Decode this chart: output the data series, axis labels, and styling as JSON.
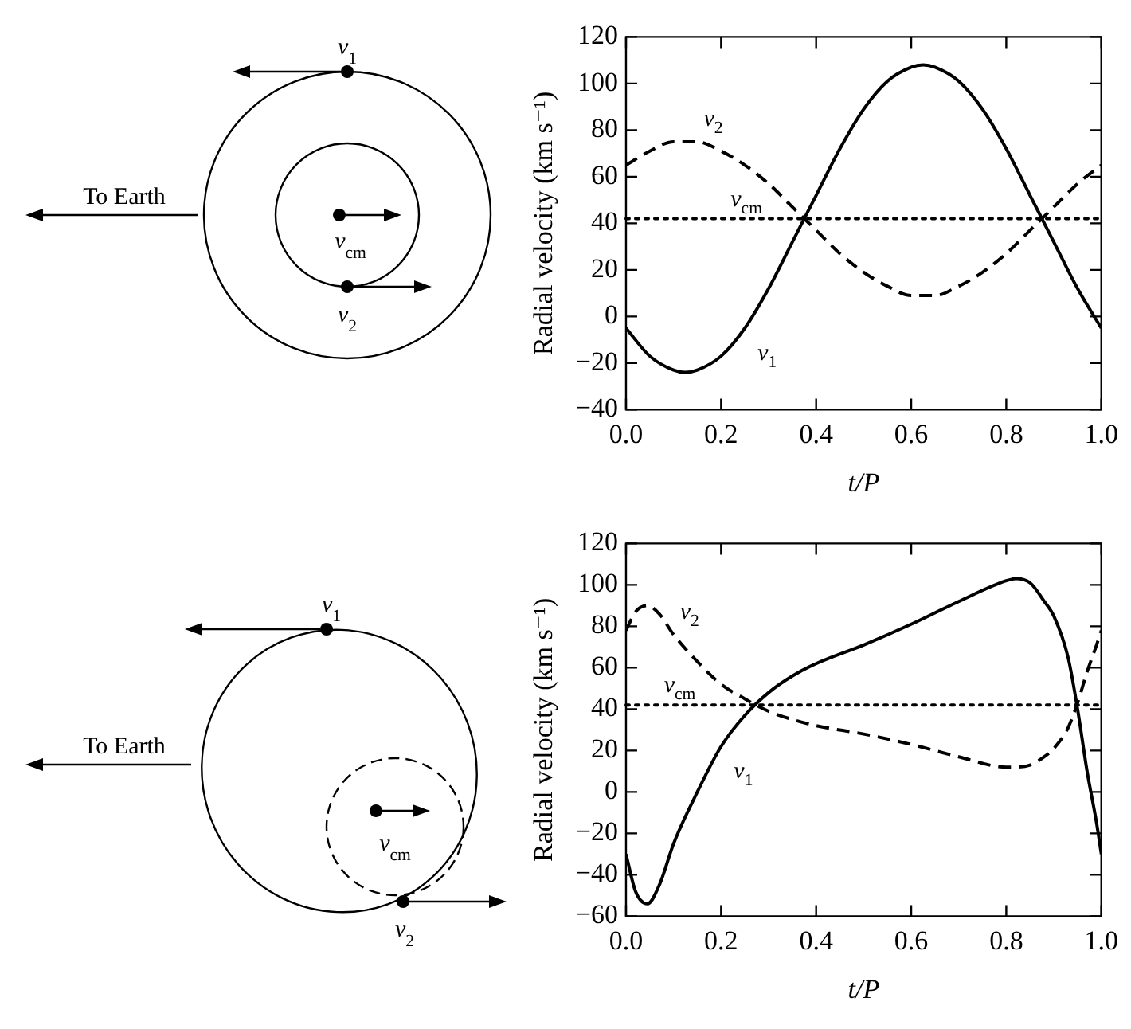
{
  "chart_data": [
    {
      "type": "line",
      "xlabel": "t/P",
      "ylabel": "Radial velocity (km s⁻¹)",
      "xlim": [
        0,
        1
      ],
      "ylim": [
        -40,
        120
      ],
      "xticks": [
        {
          "value": 0,
          "label": "0.0"
        },
        {
          "value": 0.2,
          "label": "0.2"
        },
        {
          "value": 0.4,
          "label": "0.4"
        },
        {
          "value": 0.6,
          "label": "0.6"
        },
        {
          "value": 0.8,
          "label": "0.8"
        },
        {
          "value": 1,
          "label": "1.0"
        }
      ],
      "yticks": [
        -40,
        -20,
        0,
        20,
        40,
        60,
        80,
        100,
        120
      ],
      "x": [
        0,
        0.05,
        0.1,
        0.125,
        0.15,
        0.2,
        0.25,
        0.3,
        0.35,
        0.4,
        0.45,
        0.5,
        0.55,
        0.6,
        0.625,
        0.65,
        0.7,
        0.75,
        0.8,
        0.85,
        0.9,
        0.95,
        1
      ],
      "series": [
        {
          "name": "v$_{1}$",
          "color": "#000000",
          "line_style": "solid",
          "values": [
            -5,
            -17,
            -23,
            -24,
            -23,
            -17,
            -5,
            12,
            32,
            52,
            72,
            89,
            101,
            107,
            108,
            107,
            101,
            89,
            72,
            52,
            32,
            12,
            -5
          ]
        },
        {
          "name": "v$_{2}$",
          "color": "#000000",
          "line_style": "dashed",
          "values": [
            65,
            71,
            75,
            75,
            75,
            71,
            65,
            57,
            47,
            37,
            27,
            19,
            13,
            9,
            9,
            9,
            13,
            19,
            27,
            37,
            47,
            57,
            65
          ]
        }
      ],
      "ref_lines": [
        {
          "axis": "y",
          "value": 42,
          "label": "v$_{cm}$",
          "line_style": "dotted",
          "color": "#000000"
        }
      ],
      "marker": "none",
      "legend": false,
      "grid": false,
      "annotations": [
        "To Earth",
        "v$_{1}$",
        "v$_{2}$",
        "v$_{cm}$"
      ]
    },
    {
      "type": "line",
      "xlabel": "t/P",
      "ylabel": "Radial velocity (km s⁻¹)",
      "xlim": [
        0,
        1
      ],
      "ylim": [
        -60,
        120
      ],
      "xticks": [
        {
          "value": 0,
          "label": "0.0"
        },
        {
          "value": 0.2,
          "label": "0.2"
        },
        {
          "value": 0.4,
          "label": "0.4"
        },
        {
          "value": 0.6,
          "label": "0.6"
        },
        {
          "value": 0.8,
          "label": "0.8"
        },
        {
          "value": 1,
          "label": "1.0"
        }
      ],
      "yticks": [
        -60,
        -40,
        -20,
        0,
        20,
        40,
        60,
        80,
        100,
        120
      ],
      "x": [
        0,
        0.02,
        0.045,
        0.07,
        0.1,
        0.15,
        0.2,
        0.25,
        0.3,
        0.35,
        0.4,
        0.5,
        0.6,
        0.7,
        0.8,
        0.82,
        0.85,
        0.88,
        0.9,
        0.93,
        0.95,
        0.97,
        0.99,
        1
      ],
      "series": [
        {
          "name": "v$_{1}$",
          "color": "#000000",
          "line_style": "solid",
          "values": [
            -30,
            -48,
            -54,
            -45,
            -25,
            0,
            22,
            37,
            48,
            56,
            62,
            71,
            81,
            92,
            102,
            103,
            101,
            92,
            85,
            65,
            40,
            10,
            -15,
            -30
          ]
        },
        {
          "name": "v$_{2}$",
          "color": "#000000",
          "line_style": "dashed",
          "values": [
            78,
            87,
            90,
            86,
            76,
            63,
            52,
            45,
            39,
            35,
            32,
            28,
            23,
            17,
            12,
            12,
            13,
            17,
            21,
            31,
            43,
            58,
            71,
            78
          ]
        }
      ],
      "ref_lines": [
        {
          "axis": "y",
          "value": 42,
          "label": "v$_{cm}$",
          "line_style": "dotted",
          "color": "#000000"
        }
      ],
      "marker": "none",
      "legend": false,
      "grid": false,
      "annotations": [
        "To Earth",
        "v$_{1}$",
        "v$_{2}$",
        "v$_{cm}$"
      ]
    }
  ]
}
